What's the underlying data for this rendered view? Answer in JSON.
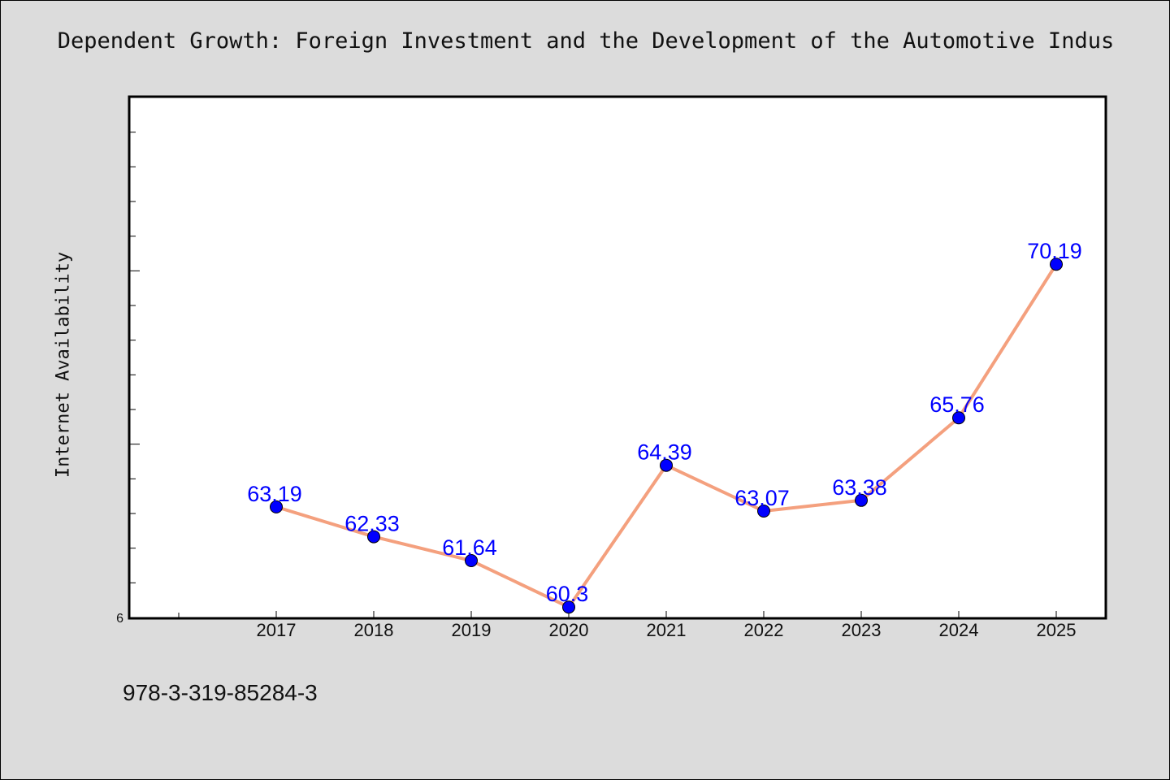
{
  "page": {
    "background_color": "#dcdcdc",
    "footer_text": "978-3-319-85284-3"
  },
  "chart_data": {
    "type": "line",
    "title": "Dependent Growth: Foreign Investment and the Development of the Automotive Indus",
    "xlabel": "",
    "ylabel": "Internet Availability",
    "categories": [
      "2017",
      "2018",
      "2019",
      "2020",
      "2021",
      "2022",
      "2023",
      "2024",
      "2025"
    ],
    "series": [
      {
        "values": [
          63.19,
          62.33,
          61.64,
          60.3,
          64.39,
          63.07,
          63.38,
          65.76,
          70.19
        ],
        "line_color": "#f4a07e",
        "marker_color": "#0000ff",
        "label_color": "#0000ff"
      }
    ],
    "data_labels": [
      "63.19",
      "62.33",
      "61.64",
      "60.3",
      "64.39",
      "63.07",
      "63.38",
      "65.76",
      "70.19"
    ],
    "y_tick_labels": [
      "6"
    ],
    "ylim": [
      60,
      75
    ],
    "grid": false,
    "legend": "none"
  }
}
